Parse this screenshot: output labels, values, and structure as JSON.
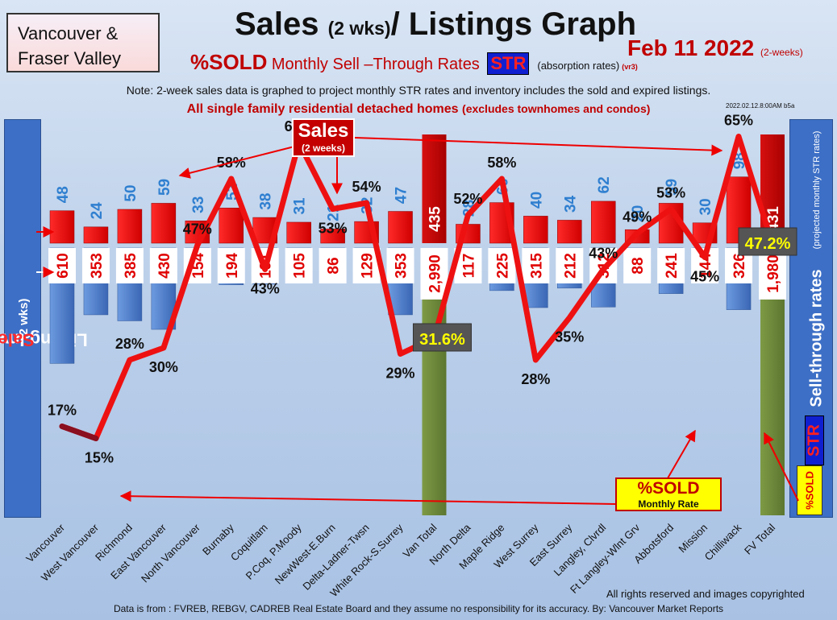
{
  "header": {
    "region_line1": "Vancouver &",
    "region_line2": "Fraser Valley",
    "title_a": "Sales ",
    "title_b": "(2 wks)",
    "title_c": "/ Listings Graph",
    "date": "Feb  11  2022",
    "date_note": "(2-weeks)",
    "subtitle_a": "%SOLD",
    "subtitle_b": " Monthly Sell –Through Rates ",
    "str": "STR",
    "subtitle_c": "(absorption rates)",
    "subtitle_d": "(vr3)",
    "note": "Note: 2-week sales data is graphed to project monthly STR rates and inventory includes the sold and expired listings.",
    "detached": "All single family residential detached homes",
    "detached_note": "(excludes townhomes and condos)",
    "stamp": "2022.02.12.8:00AM b5a"
  },
  "side": {
    "left_a": "Listing Inventory / ",
    "left_b": "Sales",
    "left_c": "(2  wks)",
    "right_label": "Sell-through rates",
    "right_note": "(projected monthly STR rates)",
    "str": "STR",
    "sold": "%SOLD"
  },
  "callouts": {
    "sales_big": "Sales",
    "sales_small": "(2 weeks)",
    "sold_big": "%SOLD",
    "sold_small": "Monthly Rate"
  },
  "footer": {
    "rights": "All rights reserved and  images copyrighted",
    "source": "Data is from : FVREB, REBGV, CADREB Real Estate Board and they assume no responsibility for its accuracy. By: Vancouver Market Reports"
  },
  "colors": {
    "sales": "#ee0000",
    "inventory": "#4a7fd0",
    "total_sales": "#c80000",
    "total_inventory": "#6f8c3a",
    "line": "#ee1111",
    "highlight": "#ffff00"
  },
  "chart_data": {
    "type": "bar",
    "categories": [
      "Vancouver",
      "West Vancouver",
      "Richmond",
      "East Vancouver",
      "North Vancouver",
      "Burnaby",
      "Coquitlam",
      "P.Coq, P.Moody",
      "NewWest-E.Burn",
      "Delta-Ladner-Twsn",
      "White Rock-S.Surrey",
      "Van Total",
      "North Delta",
      "Maple Ridge",
      "West Surrey",
      "East Surrey",
      "Langley, Clvrdl",
      "Ft Langley-Wlnt Grv",
      "Abbotsford",
      "Mission",
      "Chilliwack",
      "FV Total"
    ],
    "series": [
      {
        "name": "Sales",
        "values": [
          48,
          24,
          50,
          59,
          33,
          52,
          38,
          31,
          21,
          32,
          47,
          435,
          28,
          60,
          40,
          34,
          62,
          20,
          59,
          30,
          98,
          431
        ]
      },
      {
        "name": "Listing Inventory",
        "values": [
          610,
          353,
          385,
          430,
          154,
          194,
          191,
          105,
          86,
          129,
          353,
          2990,
          117,
          225,
          315,
          212,
          312,
          88,
          241,
          144,
          326,
          1980
        ],
        "labels": [
          "610",
          "353",
          "385",
          "430",
          "154",
          "194",
          "191",
          "105",
          "86",
          "129",
          "353",
          "2,990",
          "117",
          "225",
          "315",
          "212",
          "312",
          "88",
          "241",
          "144",
          "326",
          "1,980"
        ]
      },
      {
        "name": "%SOLD",
        "type": "line",
        "values": [
          17,
          15,
          28,
          30,
          47,
          58,
          43,
          64,
          53,
          54,
          29,
          31.6,
          52,
          58,
          28,
          35,
          43,
          49,
          53,
          45,
          65,
          47.2
        ],
        "labels": [
          "17%",
          "15%",
          "28%",
          "30%",
          "47%",
          "58%",
          "43%",
          "64%",
          "53%",
          "54%",
          "29%",
          "31.6%",
          "52%",
          "58%",
          "28%",
          "35%",
          "43%",
          "49%",
          "53%",
          "45%",
          "65%",
          "47.2%"
        ]
      }
    ]
  }
}
